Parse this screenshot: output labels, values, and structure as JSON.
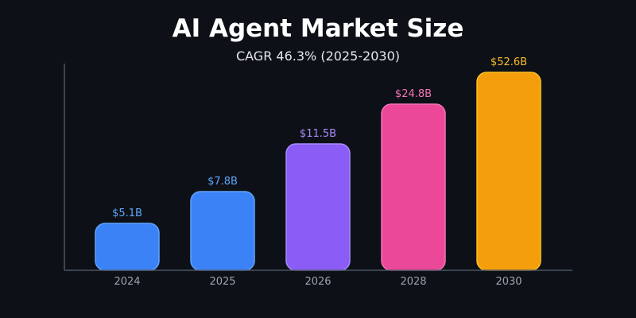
{
  "chart_data": {
    "type": "bar",
    "title": "AI Agent Market Size",
    "subtitle": "CAGR 46.3% (2025-2030)",
    "categories": [
      "2024",
      "2025",
      "2026",
      "2028",
      "2030"
    ],
    "values": [
      5.1,
      7.8,
      11.5,
      24.8,
      52.6
    ],
    "data_labels": [
      "$5.1B",
      "$7.8B",
      "$11.5B",
      "$24.8B",
      "$52.6B"
    ],
    "xlabel": "",
    "ylabel": "",
    "grid": false,
    "y_axis_ticks": false,
    "colors": [
      "#3b82f6",
      "#3b82f6",
      "#8b5cf6",
      "#ec4899",
      "#f59e0b"
    ],
    "stroke_colors": [
      "#60a5fa",
      "#60a5fa",
      "#a78bfa",
      "#f472b6",
      "#fbbf24"
    ],
    "label_colors": [
      "#60a5fa",
      "#60a5fa",
      "#a78bfa",
      "#f472b6",
      "#fbbf24"
    ],
    "background": "#0d1117"
  }
}
